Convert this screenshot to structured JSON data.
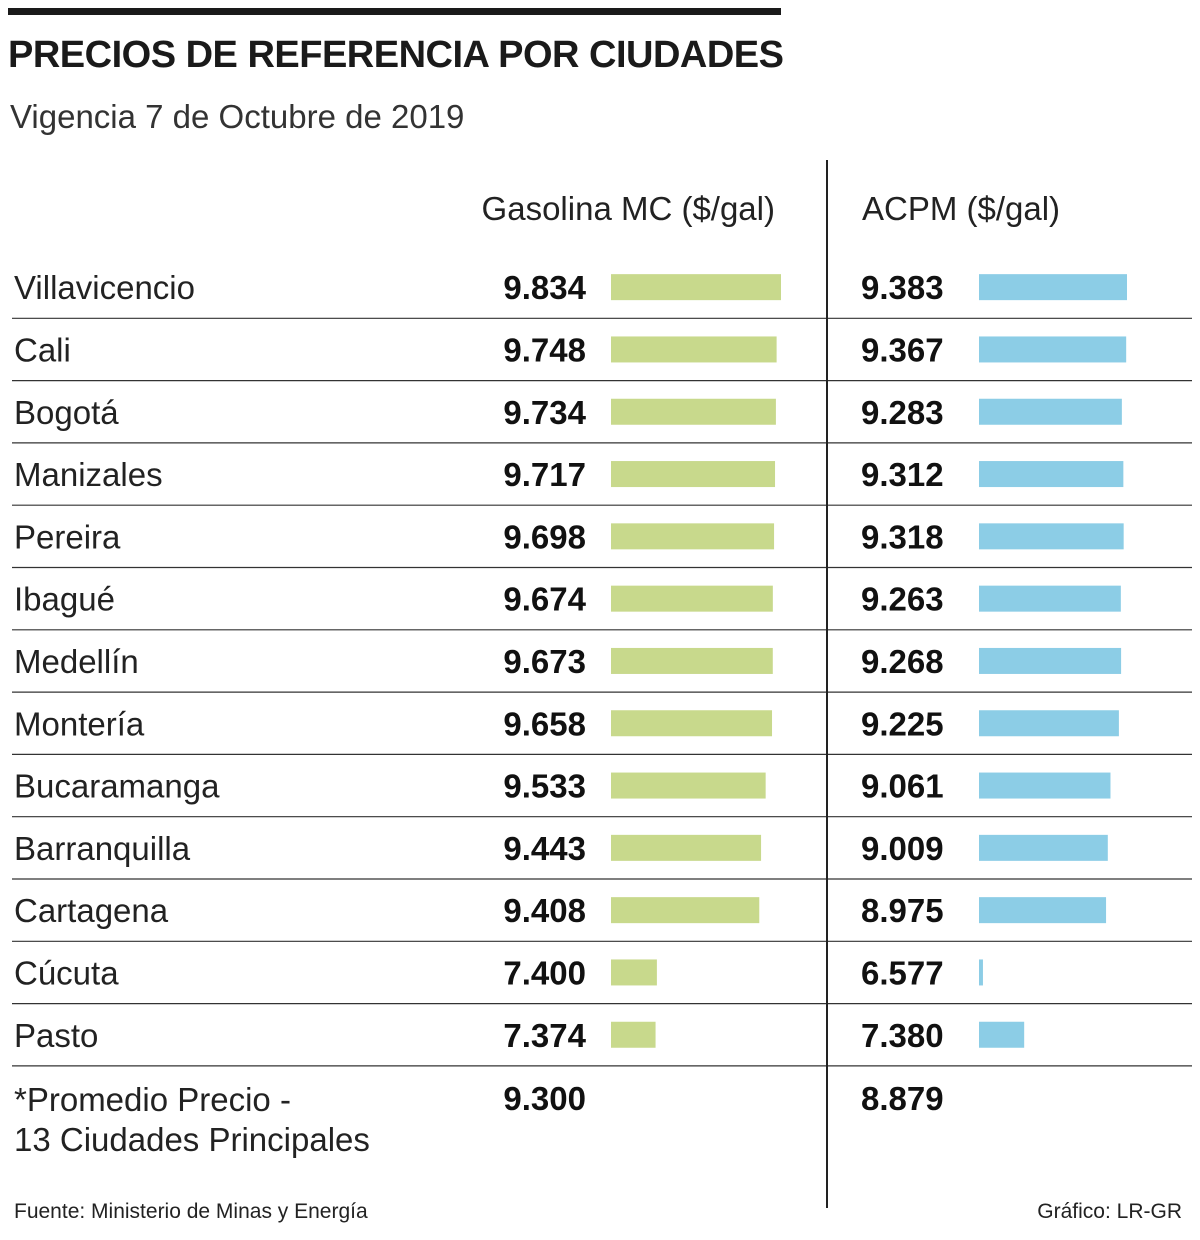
{
  "header": {
    "title": "PRECIOS DE REFERENCIA POR CIUDADES",
    "subtitle": "Vigencia 7 de Octubre de 2019"
  },
  "columns": {
    "gasoline": "Gasolina MC ($/gal)",
    "acpm": "ACPM ($/gal)"
  },
  "colors": {
    "gasoline_bar": "#c8d98c",
    "acpm_bar": "#8ccde6",
    "rule": "#333333"
  },
  "chart_data": {
    "type": "bar",
    "orientation": "horizontal",
    "title": "PRECIOS DE REFERENCIA POR CIUDADES",
    "subtitle": "Vigencia 7 de Octubre de 2019",
    "categories": [
      "Villavicencio",
      "Cali",
      "Bogotá",
      "Manizales",
      "Pereira",
      "Ibagué",
      "Medellín",
      "Montería",
      "Bucaramanga",
      "Barranquilla",
      "Cartagena",
      "Cúcuta",
      "Pasto"
    ],
    "series": [
      {
        "name": "Gasolina MC ($/gal)",
        "values": [
          9834,
          9748,
          9734,
          9717,
          9698,
          9674,
          9673,
          9658,
          9533,
          9443,
          9408,
          7400,
          7374
        ],
        "labels": [
          "9.834",
          "9.748",
          "9.734",
          "9.717",
          "9.698",
          "9.674",
          "9.673",
          "9.658",
          "9.533",
          "9.443",
          "9.408",
          "7.400",
          "7.374"
        ],
        "scale_min": 6500,
        "scale_max": 9834
      },
      {
        "name": "ACPM ($/gal)",
        "values": [
          9383,
          9367,
          9283,
          9312,
          9318,
          9263,
          9268,
          9225,
          9061,
          9009,
          8975,
          6577,
          7380
        ],
        "labels": [
          "9.383",
          "9.367",
          "9.283",
          "9.312",
          "9.318",
          "9.263",
          "9.268",
          "9.225",
          "9.061",
          "9.009",
          "8.975",
          "6.577",
          "7.380"
        ],
        "scale_min": 6500,
        "scale_max": 9383
      }
    ],
    "average": {
      "label_line1": "*Promedio Precio -",
      "label_line2": "13 Ciudades Principales",
      "gasoline": "9.300",
      "acpm": "8.879"
    }
  },
  "footer": {
    "source": "Fuente: Ministerio de Minas y Energía",
    "credit": "Gráfico: LR-GR"
  }
}
